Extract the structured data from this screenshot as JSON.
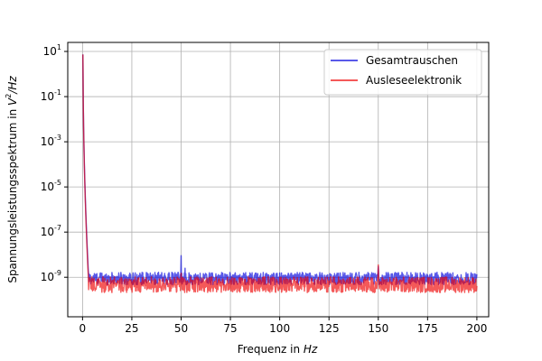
{
  "chart_data": {
    "type": "line",
    "title": "",
    "xlabel": {
      "text": "Frequenz in ",
      "italic": "Hz"
    },
    "ylabel": {
      "text": "Spannungsleistungsspektrum in ",
      "italic_base": "V",
      "sup": "2",
      "italic_tail": "/Hz"
    },
    "xlim": [
      -7.5,
      206
    ],
    "ylim_log10": [
      -10.75,
      1.4
    ],
    "yscale": "log",
    "grid": true,
    "legend_position": "upper-right",
    "x_ticks": [
      0,
      25,
      50,
      75,
      100,
      125,
      150,
      175,
      200
    ],
    "y_ticks_exp": [
      1,
      -1,
      -3,
      -5,
      -7,
      -9
    ],
    "y_tick_base": "10",
    "series": [
      {
        "name": "Gesamtrauschen",
        "color": "#0000dd",
        "opacity": 0.65,
        "x_range": [
          0,
          200
        ],
        "peak_at_zero": 7.0,
        "floor_level": 1e-09,
        "floor_spread": 0.55,
        "spikes": [
          {
            "x": 50,
            "y": 9e-09
          },
          {
            "x": 52,
            "y": 2.5e-09
          },
          {
            "x": 150,
            "y": 3e-09
          }
        ]
      },
      {
        "name": "Ausleseelektronik",
        "color": "#ee0000",
        "opacity": 0.65,
        "x_range": [
          0,
          200
        ],
        "peak_at_zero": 7.0,
        "floor_level": 5.5e-10,
        "floor_spread": 0.7,
        "spikes": [
          {
            "x": 50,
            "y": 1.5e-09
          },
          {
            "x": 150,
            "y": 3.5e-09
          }
        ]
      }
    ]
  }
}
